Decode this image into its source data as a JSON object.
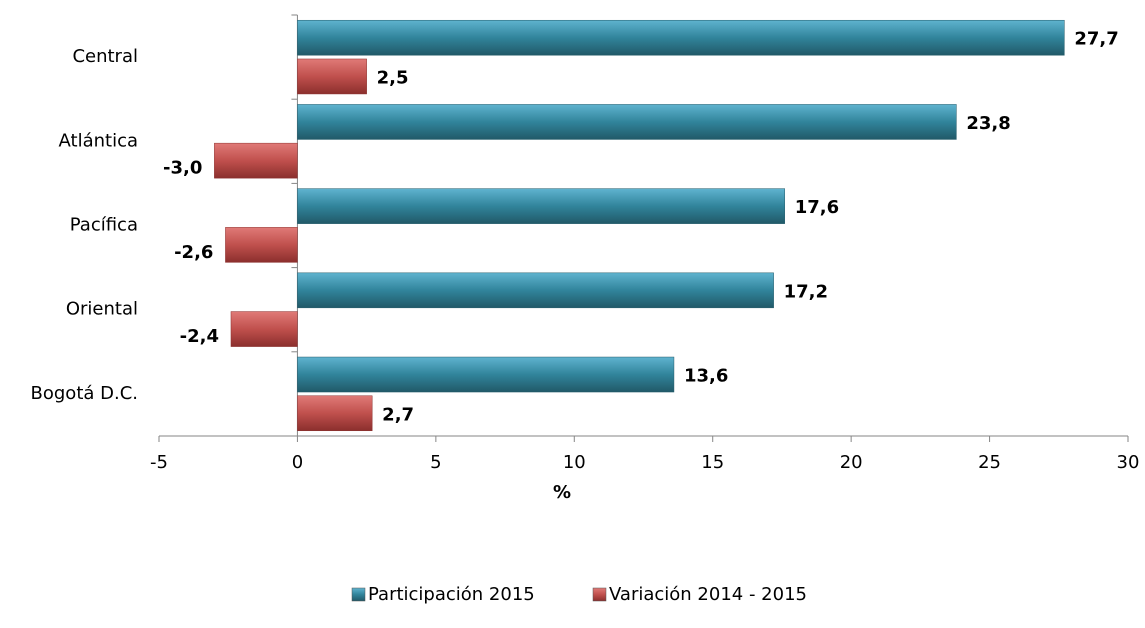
{
  "chart_data": {
    "type": "bar",
    "orientation": "horizontal",
    "categories": [
      "Central",
      "Atlántica",
      "Pacífica",
      "Oriental",
      "Bogotá D.C."
    ],
    "series": [
      {
        "name": "Participación 2015",
        "color": "#31849b",
        "label_color": "#31859c",
        "values": [
          27.7,
          23.8,
          17.6,
          17.2,
          13.6
        ],
        "value_labels": [
          "27,7",
          "23,8",
          "17,6",
          "17,2",
          "13,6"
        ]
      },
      {
        "name": "Variación 2014 - 2015",
        "color": "#c0504d",
        "label_color": "#ff0000",
        "values": [
          2.5,
          -3.0,
          -2.6,
          -2.4,
          2.7
        ],
        "value_labels": [
          "2,5",
          "-3,0",
          "-2,6",
          "-2,4",
          "2,7"
        ]
      }
    ],
    "xlabel": "%",
    "xlim": [
      -5,
      30
    ],
    "xticks": [
      -5,
      0,
      5,
      10,
      15,
      20,
      25,
      30
    ],
    "legend": "bottom"
  }
}
